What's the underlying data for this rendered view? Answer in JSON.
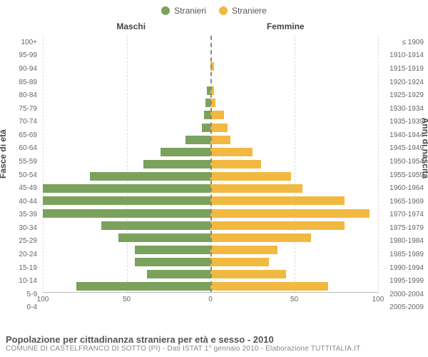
{
  "legend": {
    "male": {
      "label": "Stranieri",
      "color": "#7aa25c"
    },
    "female": {
      "label": "Straniere",
      "color": "#f2b941"
    }
  },
  "headers": {
    "male": "Maschi",
    "female": "Femmine"
  },
  "axis": {
    "left_title": "Fasce di età",
    "right_title": "Anni di nascita",
    "xmax": 100,
    "xticks": [
      100,
      50,
      0,
      50,
      100
    ]
  },
  "age_bands": [
    "100+",
    "95-99",
    "90-94",
    "85-89",
    "80-84",
    "75-79",
    "70-74",
    "65-69",
    "60-64",
    "55-59",
    "50-54",
    "45-49",
    "40-44",
    "35-39",
    "30-34",
    "25-29",
    "20-24",
    "15-19",
    "10-14",
    "5-9",
    "0-4"
  ],
  "birth_bands": [
    "≤ 1909",
    "1910-1914",
    "1915-1919",
    "1920-1924",
    "1925-1929",
    "1930-1934",
    "1935-1939",
    "1940-1944",
    "1945-1949",
    "1950-1954",
    "1955-1959",
    "1960-1964",
    "1965-1969",
    "1970-1974",
    "1975-1979",
    "1980-1984",
    "1985-1989",
    "1990-1994",
    "1995-1999",
    "2000-2004",
    "2005-2009"
  ],
  "male_values": [
    0,
    0,
    0,
    0,
    2,
    3,
    4,
    5,
    15,
    30,
    40,
    72,
    108,
    100,
    110,
    65,
    55,
    45,
    45,
    38,
    80
  ],
  "female_values": [
    0,
    0,
    2,
    0,
    2,
    3,
    8,
    10,
    12,
    25,
    30,
    48,
    55,
    80,
    95,
    80,
    60,
    40,
    35,
    45,
    70
  ],
  "chart_style": {
    "type": "population-pyramid",
    "background": "#ffffff",
    "grid_color": "#dddddd",
    "baseline_color": "#bbbbbb",
    "center_dash_color": "#888888",
    "bar_height_ratio": 0.7,
    "label_fontsize": 10,
    "header_fontsize": 12,
    "title_fontsize": 13
  },
  "footer": {
    "title": "Popolazione per cittadinanza straniera per età e sesso - 2010",
    "subtitle": "COMUNE DI CASTELFRANCO DI SOTTO (PI) - Dati ISTAT 1° gennaio 2010 - Elaborazione TUTTITALIA.IT"
  }
}
